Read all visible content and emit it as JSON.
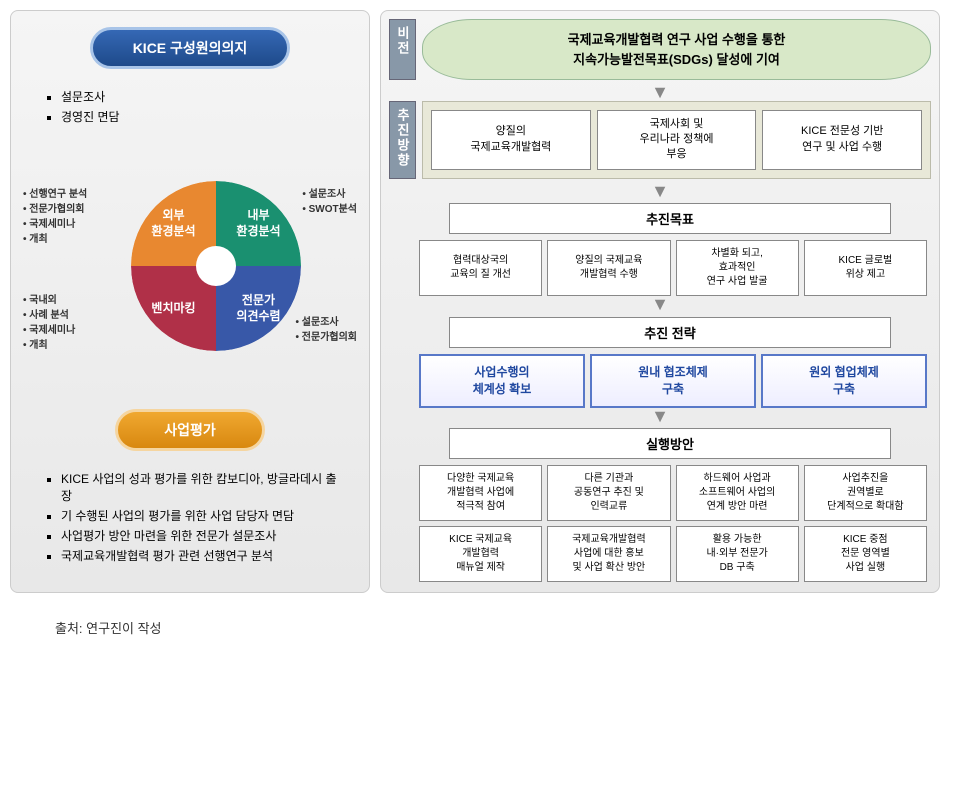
{
  "left": {
    "header1": "KICE 구성원의의지",
    "bullets1": [
      "설문조사",
      "경영진 면담"
    ],
    "pie": {
      "q1": {
        "label": "외부\n환경분석",
        "color": "#e88830"
      },
      "q2": {
        "label": "내부\n환경분석",
        "color": "#1a9070"
      },
      "q3": {
        "label": "벤치마킹",
        "color": "#b03048"
      },
      "q4": {
        "label": "전문가\n의견수렴",
        "color": "#3858a8"
      }
    },
    "notes_tl": [
      "선행연구 분석",
      "전문가협의회",
      "국제세미나",
      "개최"
    ],
    "notes_tr": [
      "설문조사",
      "SWOT분석"
    ],
    "notes_bl": [
      "국내외",
      "사례 분석",
      "국제세미나",
      "개최"
    ],
    "notes_br": [
      "설문조사",
      "전문가협의회"
    ],
    "header2": "사업평가",
    "bullets2": [
      "KICE 사업의 성과 평가를 위한 캄보디아, 방글라데시 출장",
      "기 수행된 사업의 평가를 위한 사업 담당자 면담",
      "사업평가 방안 마련을 위한 전문가 설문조사",
      "국제교육개발협력 평가 관련 선행연구 분석"
    ]
  },
  "right": {
    "vision_label": "비전",
    "vision": "국제교육개발협력 연구 사업 수행을 통한\n지속가능발전목표(SDGs) 달성에 기여",
    "dir_label": "추진방향",
    "directions": [
      "양질의\n국제교육개발협력",
      "국제사회 및\n우리나라 정책에\n부응",
      "KICE 전문성 기반\n연구 및 사업 수행"
    ],
    "goals_head": "추진목표",
    "goals": [
      "협력대상국의\n교육의 질 개선",
      "양질의 국제교육\n개발협력 수행",
      "차별화 되고,\n효과적인\n연구 사업 발굴",
      "KICE 글로벌\n위상 제고"
    ],
    "strat_head": "추진 전략",
    "strategies": [
      "사업수행의\n체계성 확보",
      "원내 협조체제\n구축",
      "원외 협업체제\n구축"
    ],
    "plan_head": "실행방안",
    "plans": [
      "다양한 국제교육\n개발협력 사업에\n적극적 참여",
      "다른 기관과\n공동연구 추진 및\n인력교류",
      "하드웨어 사업과\n소프트웨어 사업의\n연계 방안 마련",
      "사업추진을\n권역별로\n단계적으로 확대함",
      "KICE 국제교육\n개발협력\n매뉴얼 제작",
      "국제교육개발협력\n사업에 대한 홍보\n및 사업 확산 방안",
      "활용 가능한\n내·외부 전문가\nDB 구축",
      "KICE 중점\n전문 영역별\n사업 실행"
    ]
  },
  "source": "출처: 연구진이 작성"
}
